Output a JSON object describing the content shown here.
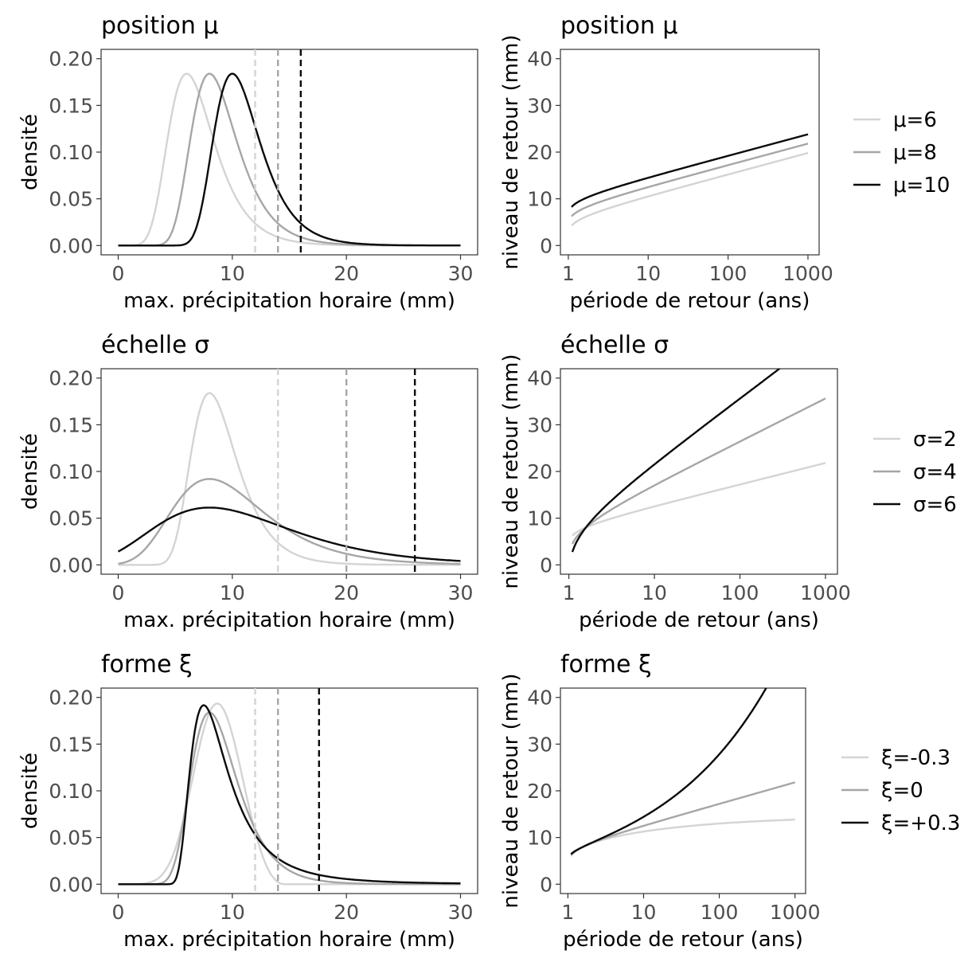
{
  "colors": {
    "light": "#d4d4d4",
    "mid": "#a6a6a6",
    "dark": "#0a0a0a",
    "text": "#000000",
    "tick": "#4d4d4d"
  },
  "chart_data": [
    {
      "type": "line",
      "title": "position μ",
      "xlabel": "max. précipitation horaire (mm)",
      "ylabel": "densité",
      "xlim": [
        0,
        30
      ],
      "ylim": [
        0,
        0.2
      ],
      "x_ticks": [
        "0",
        "10",
        "20",
        "30"
      ],
      "y_ticks": [
        "0.00",
        "0.05",
        "0.10",
        "0.15",
        "0.20"
      ],
      "grid": false,
      "series": [
        {
          "name": "μ=6",
          "mu": 6,
          "sigma": 2,
          "xi": 0,
          "quantile_line_x": 12,
          "color": "#d4d4d4"
        },
        {
          "name": "μ=8",
          "mu": 8,
          "sigma": 2,
          "xi": 0,
          "quantile_line_x": 14,
          "color": "#a6a6a6"
        },
        {
          "name": "μ=10",
          "mu": 10,
          "sigma": 2,
          "xi": 0,
          "quantile_line_x": 16,
          "color": "#0a0a0a"
        }
      ]
    },
    {
      "type": "line",
      "title": "position μ",
      "xlabel": "période de retour (ans)",
      "ylabel": "niveau de retour (mm)",
      "xscale": "log10",
      "xlim": [
        1.1,
        1000
      ],
      "ylim": [
        0,
        40
      ],
      "x_ticks": [
        "1",
        "10",
        "100",
        "1000"
      ],
      "y_ticks": [
        "0",
        "10",
        "20",
        "30",
        "40"
      ],
      "grid": false,
      "legend": "right",
      "series": [
        {
          "name": "μ=6",
          "mu": 6,
          "sigma": 2,
          "xi": 0,
          "color": "#d4d4d4"
        },
        {
          "name": "μ=8",
          "mu": 8,
          "sigma": 2,
          "xi": 0,
          "color": "#a6a6a6"
        },
        {
          "name": "μ=10",
          "mu": 10,
          "sigma": 2,
          "xi": 0,
          "color": "#0a0a0a"
        }
      ]
    },
    {
      "type": "line",
      "title": "échelle σ",
      "xlabel": "max. précipitation horaire (mm)",
      "ylabel": "densité",
      "xlim": [
        0,
        30
      ],
      "ylim": [
        0,
        0.2
      ],
      "x_ticks": [
        "0",
        "10",
        "20",
        "30"
      ],
      "y_ticks": [
        "0.00",
        "0.05",
        "0.10",
        "0.15",
        "0.20"
      ],
      "grid": false,
      "series": [
        {
          "name": "σ=2",
          "mu": 8,
          "sigma": 2,
          "xi": 0,
          "quantile_line_x": 14,
          "color": "#d4d4d4"
        },
        {
          "name": "σ=4",
          "mu": 8,
          "sigma": 4,
          "xi": 0,
          "quantile_line_x": 20,
          "color": "#a6a6a6"
        },
        {
          "name": "σ=6",
          "mu": 8,
          "sigma": 6,
          "xi": 0,
          "quantile_line_x": 26,
          "color": "#0a0a0a"
        }
      ]
    },
    {
      "type": "line",
      "title": "échelle σ",
      "xlabel": "période de retour (ans)",
      "ylabel": "niveau de retour (mm)",
      "xscale": "log10",
      "xlim": [
        1.1,
        1000
      ],
      "ylim": [
        0,
        40
      ],
      "x_ticks": [
        "1",
        "10",
        "100",
        "1000"
      ],
      "y_ticks": [
        "0",
        "10",
        "20",
        "30",
        "40"
      ],
      "grid": false,
      "legend": "right",
      "series": [
        {
          "name": "σ=2",
          "mu": 8,
          "sigma": 2,
          "xi": 0,
          "color": "#d4d4d4"
        },
        {
          "name": "σ=4",
          "mu": 8,
          "sigma": 4,
          "xi": 0,
          "color": "#a6a6a6"
        },
        {
          "name": "σ=6",
          "mu": 8,
          "sigma": 6,
          "xi": 0,
          "color": "#0a0a0a"
        }
      ]
    },
    {
      "type": "line",
      "title": "forme ξ",
      "xlabel": "max. précipitation horaire (mm)",
      "ylabel": "densité",
      "xlim": [
        0,
        30
      ],
      "ylim": [
        0,
        0.2
      ],
      "x_ticks": [
        "0",
        "10",
        "20",
        "30"
      ],
      "y_ticks": [
        "0.00",
        "0.05",
        "0.10",
        "0.15",
        "0.20"
      ],
      "grid": false,
      "series": [
        {
          "name": "ξ=-0.3",
          "mu": 8,
          "sigma": 2,
          "xi": -0.3,
          "quantile_line_x": 12,
          "color": "#d4d4d4"
        },
        {
          "name": "ξ=0",
          "mu": 8,
          "sigma": 2,
          "xi": 0,
          "quantile_line_x": 14,
          "color": "#a6a6a6"
        },
        {
          "name": "ξ=+0.3",
          "mu": 8,
          "sigma": 2,
          "xi": 0.3,
          "quantile_line_x": 17.6,
          "color": "#0a0a0a"
        }
      ]
    },
    {
      "type": "line",
      "title": "forme ξ",
      "xlabel": "période de retour (ans)",
      "ylabel": "niveau de retour (mm)",
      "xscale": "log10",
      "xlim": [
        1.1,
        1000
      ],
      "ylim": [
        0,
        40
      ],
      "x_ticks": [
        "1",
        "10",
        "100",
        "1000"
      ],
      "y_ticks": [
        "0",
        "10",
        "20",
        "30",
        "40"
      ],
      "grid": false,
      "legend": "right",
      "series": [
        {
          "name": "ξ=-0.3",
          "mu": 8,
          "sigma": 2,
          "xi": -0.3,
          "color": "#d4d4d4"
        },
        {
          "name": "ξ=0",
          "mu": 8,
          "sigma": 2,
          "xi": 0,
          "color": "#a6a6a6"
        },
        {
          "name": "ξ=+0.3",
          "mu": 8,
          "sigma": 2,
          "xi": 0.3,
          "color": "#0a0a0a"
        }
      ]
    }
  ]
}
